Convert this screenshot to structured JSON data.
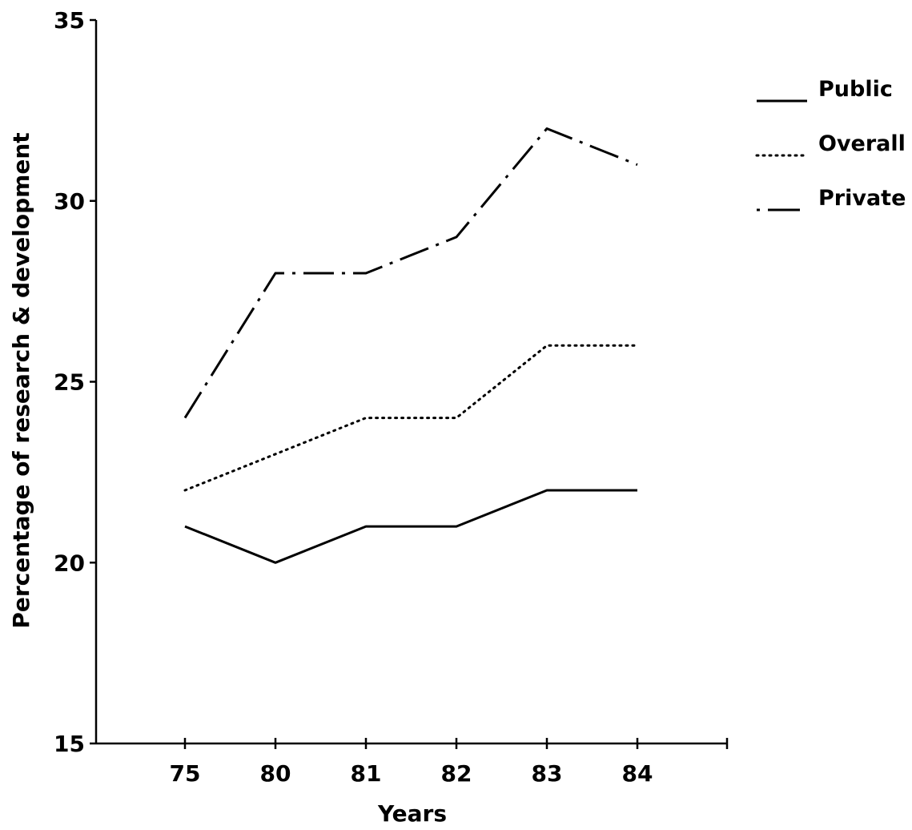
{
  "chart_data": {
    "type": "line",
    "title": "",
    "xlabel": "Years",
    "ylabel": "Percentage of research & development",
    "categories": [
      "75",
      "80",
      "81",
      "82",
      "83",
      "84"
    ],
    "ylim": [
      15,
      35
    ],
    "yticks": [
      "15",
      "20",
      "25",
      "30",
      "35"
    ],
    "grid": false,
    "legend_position": "top-right",
    "series": [
      {
        "name": "Public",
        "style": "solid",
        "values": [
          21,
          20,
          21,
          21,
          22,
          22
        ]
      },
      {
        "name": "Overall",
        "style": "dotted",
        "values": [
          22,
          23,
          24,
          24,
          26,
          26
        ]
      },
      {
        "name": "Private",
        "style": "dash-dot",
        "values": [
          24,
          28,
          28,
          29,
          32,
          31
        ]
      }
    ]
  }
}
